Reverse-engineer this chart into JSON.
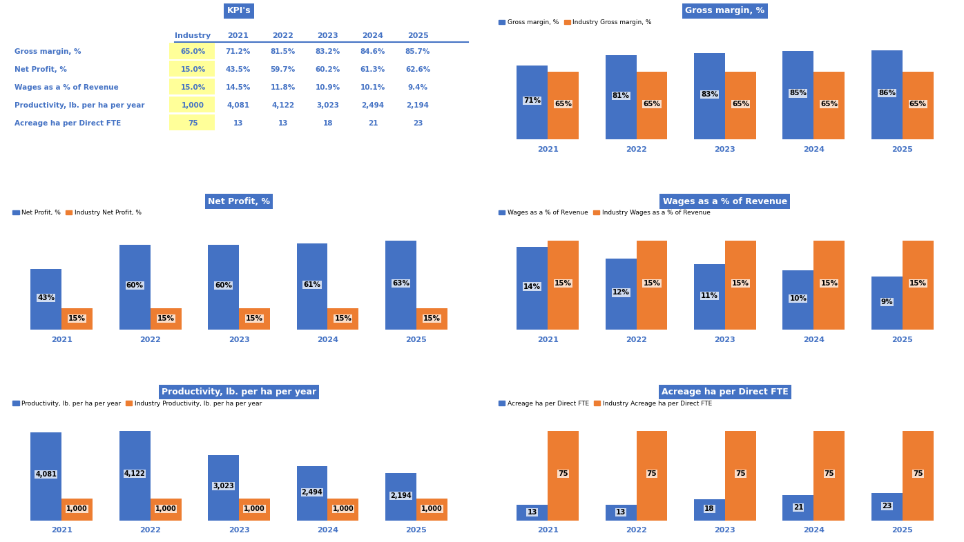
{
  "table": {
    "title": "KPI's",
    "rows": [
      "Gross margin, %",
      "Net Profit, %",
      "Wages as a % of Revenue",
      "Productivity, lb. per ha per year",
      "Acreage ha per Direct FTE"
    ],
    "columns": [
      "Industry",
      "2021",
      "2022",
      "2023",
      "2024",
      "2025"
    ],
    "data": [
      [
        "65.0%",
        "71.2%",
        "81.5%",
        "83.2%",
        "84.6%",
        "85.7%"
      ],
      [
        "15.0%",
        "43.5%",
        "59.7%",
        "60.2%",
        "61.3%",
        "62.6%"
      ],
      [
        "15.0%",
        "14.5%",
        "11.8%",
        "10.9%",
        "10.1%",
        "9.4%"
      ],
      [
        "1,000",
        "4,081",
        "4,122",
        "3,023",
        "2,494",
        "2,194"
      ],
      [
        "75",
        "13",
        "13",
        "18",
        "21",
        "23"
      ]
    ]
  },
  "years": [
    "2021",
    "2022",
    "2023",
    "2024",
    "2025"
  ],
  "blue": "#4472C4",
  "orange": "#ED7D31",
  "yellow_bg": "#FFFF99",
  "charts": {
    "gross_margin": {
      "title": "Gross margin, %",
      "legend1": "Gross margin, %",
      "legend2": "Industry Gross margin, %",
      "blue_vals": [
        71,
        81,
        83,
        85,
        86
      ],
      "orange_vals": [
        65,
        65,
        65,
        65,
        65
      ],
      "blue_labels": [
        "71%",
        "81%",
        "83%",
        "85%",
        "86%"
      ],
      "orange_labels": [
        "65%",
        "65%",
        "65%",
        "65%",
        "65%"
      ]
    },
    "net_profit": {
      "title": "Net Profit, %",
      "legend1": "Net Profit, %",
      "legend2": "Industry Net Profit, %",
      "blue_vals": [
        43,
        60,
        60,
        61,
        63
      ],
      "orange_vals": [
        15,
        15,
        15,
        15,
        15
      ],
      "blue_labels": [
        "43%",
        "60%",
        "60%",
        "61%",
        "63%"
      ],
      "orange_labels": [
        "15%",
        "15%",
        "15%",
        "15%",
        "15%"
      ]
    },
    "wages": {
      "title": "Wages as a % of Revenue",
      "legend1": "Wages as a % of Revenue",
      "legend2": "Industry Wages as a % of Revenue",
      "blue_vals": [
        14,
        12,
        11,
        10,
        9
      ],
      "orange_vals": [
        15,
        15,
        15,
        15,
        15
      ],
      "blue_labels": [
        "14%",
        "12%",
        "11%",
        "10%",
        "9%"
      ],
      "orange_labels": [
        "15%",
        "15%",
        "15%",
        "15%",
        "15%"
      ]
    },
    "productivity": {
      "title": "Productivity, lb. per ha per year",
      "legend1": "Productivity, lb. per ha per year",
      "legend2": "Industry Productivity, lb. per ha per year",
      "blue_vals": [
        4081,
        4122,
        3023,
        2494,
        2194
      ],
      "orange_vals": [
        1000,
        1000,
        1000,
        1000,
        1000
      ],
      "blue_labels": [
        "4,081",
        "4,122",
        "3,023",
        "2,494",
        "2,194"
      ],
      "orange_labels": [
        "1,000",
        "1,000",
        "1,000",
        "1,000",
        "1,000"
      ]
    },
    "acreage": {
      "title": "Acreage ha per Direct FTE",
      "legend1": "Acreage ha per Direct FTE",
      "legend2": "Industry Acreage ha per Direct FTE",
      "blue_vals": [
        13,
        13,
        18,
        21,
        23
      ],
      "orange_vals": [
        75,
        75,
        75,
        75,
        75
      ],
      "blue_labels": [
        "13",
        "13",
        "18",
        "21",
        "23"
      ],
      "orange_labels": [
        "75",
        "75",
        "75",
        "75",
        "75"
      ]
    }
  }
}
